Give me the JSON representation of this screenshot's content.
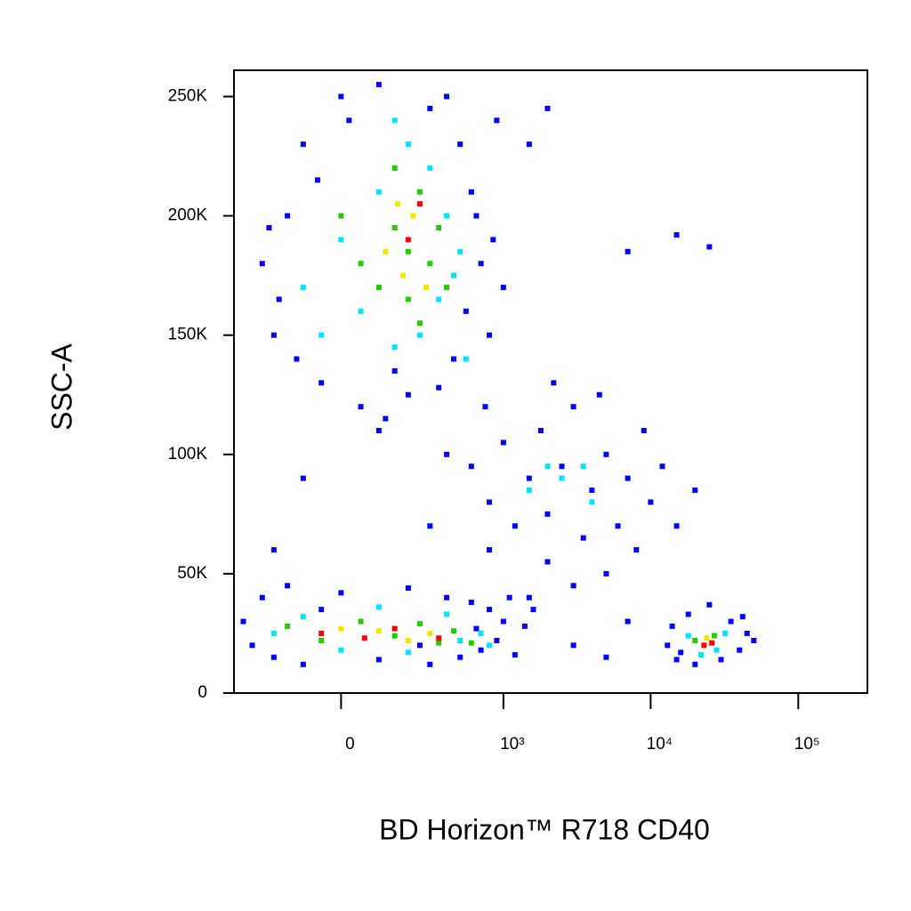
{
  "chart_data": {
    "type": "scatter",
    "x_label": "BD Horizon™ R718 CD40",
    "y_label": "SSC-A",
    "xscale": "biexponential",
    "xlim": [
      -410,
      294000
    ],
    "ylim": [
      0,
      261000
    ],
    "xticks": [
      0,
      {
        "value": 1000,
        "label": "10³"
      },
      {
        "value": 10000,
        "label": "10⁴"
      },
      {
        "value": 100000,
        "label": "10⁵"
      }
    ],
    "yticks": [
      0,
      {
        "value": 50000,
        "label": "50K"
      },
      {
        "value": 100000,
        "label": "100K"
      },
      {
        "value": 150000,
        "label": "150K"
      },
      {
        "value": 200000,
        "label": "200K"
      },
      {
        "value": 250000,
        "label": "250K"
      }
    ],
    "series": [
      {
        "color": "#0000ff",
        "x": [
          -250,
          -200,
          -150,
          -100,
          -50,
          0,
          50,
          100,
          150,
          200,
          300,
          400,
          500,
          600,
          700,
          800,
          900,
          -180,
          -120,
          -60,
          20,
          350,
          450,
          550,
          650,
          750,
          850,
          120,
          -220,
          1000,
          400,
          600,
          800,
          1000,
          1200,
          1500,
          1800,
          2000,
          2500,
          3000,
          3500,
          4000,
          5000,
          6000,
          7000,
          8000,
          10000,
          12000,
          15000,
          5000,
          3000,
          2000,
          1500,
          800,
          300,
          -100,
          -200,
          100,
          20000,
          9000,
          4500,
          2200,
          -350,
          -300,
          -250,
          -200,
          -150,
          -100,
          0,
          100,
          200,
          300,
          400,
          500,
          600,
          700,
          800,
          900,
          1000,
          1100,
          1200,
          1400,
          1600,
          3000,
          5000,
          7000,
          -50,
          250,
          650,
          13000,
          14000,
          15000,
          18000,
          20000,
          25000,
          30000,
          35000,
          40000,
          45000,
          50000,
          16000,
          42000,
          15000,
          25000,
          7000,
          2000,
          1500
        ],
        "values": [
          180000,
          150000,
          200000,
          230000,
          130000,
          250000,
          120000,
          255000,
          135000,
          125000,
          245000,
          250000,
          230000,
          210000,
          180000,
          150000,
          240000,
          165000,
          140000,
          215000,
          240000,
          128000,
          140000,
          160000,
          200000,
          120000,
          190000,
          115000,
          195000,
          170000,
          100000,
          95000,
          80000,
          105000,
          70000,
          90000,
          110000,
          75000,
          95000,
          120000,
          65000,
          85000,
          100000,
          70000,
          90000,
          60000,
          80000,
          95000,
          70000,
          50000,
          45000,
          55000,
          40000,
          60000,
          70000,
          90000,
          60000,
          110000,
          85000,
          110000,
          125000,
          130000,
          30000,
          20000,
          40000,
          15000,
          45000,
          12000,
          42000,
          14000,
          44000,
          12000,
          40000,
          15000,
          38000,
          18000,
          35000,
          22000,
          30000,
          40000,
          16000,
          28000,
          35000,
          20000,
          15000,
          30000,
          35000,
          20000,
          27000,
          20000,
          28000,
          14000,
          33000,
          12000,
          37000,
          14000,
          30000,
          18000,
          25000,
          22000,
          17000,
          32000,
          192000,
          187000,
          185000,
          245000,
          230000
        ]
      },
      {
        "color": "#00e5ff",
        "x": [
          -100,
          0,
          50,
          100,
          150,
          200,
          250,
          300,
          350,
          400,
          450,
          500,
          -50,
          550,
          150,
          1500,
          2500,
          3500,
          2000,
          4000,
          -200,
          -100,
          0,
          100,
          200,
          400,
          500,
          700,
          800,
          18000,
          22000,
          32000,
          28000
        ],
        "values": [
          170000,
          190000,
          160000,
          210000,
          145000,
          230000,
          150000,
          220000,
          165000,
          200000,
          175000,
          185000,
          150000,
          140000,
          240000,
          85000,
          90000,
          95000,
          95000,
          80000,
          25000,
          32000,
          18000,
          36000,
          17000,
          33000,
          22000,
          25000,
          20000,
          24000,
          16000,
          25000,
          18000
        ]
      },
      {
        "color": "#22cc00",
        "x": [
          50,
          100,
          150,
          200,
          250,
          300,
          350,
          150,
          250,
          400,
          0,
          200,
          -150,
          -50,
          50,
          150,
          250,
          350,
          450,
          600,
          20000,
          27000
        ],
        "values": [
          180000,
          170000,
          195000,
          165000,
          210000,
          180000,
          195000,
          220000,
          155000,
          170000,
          200000,
          185000,
          28000,
          22000,
          30000,
          24000,
          29000,
          21000,
          26000,
          21000,
          22000,
          24000
        ]
      },
      {
        "color": "#f5e400",
        "x": [
          120,
          180,
          220,
          280,
          160,
          0,
          100,
          200,
          300,
          24000
        ],
        "values": [
          185000,
          175000,
          200000,
          170000,
          205000,
          27000,
          26000,
          22000,
          25000,
          23000
        ]
      },
      {
        "color": "#ff0000",
        "x": [
          200,
          250,
          -50,
          60,
          150,
          350,
          23000,
          26000
        ],
        "values": [
          190000,
          205000,
          25000,
          23000,
          27000,
          23000,
          20000,
          21000
        ]
      }
    ]
  }
}
